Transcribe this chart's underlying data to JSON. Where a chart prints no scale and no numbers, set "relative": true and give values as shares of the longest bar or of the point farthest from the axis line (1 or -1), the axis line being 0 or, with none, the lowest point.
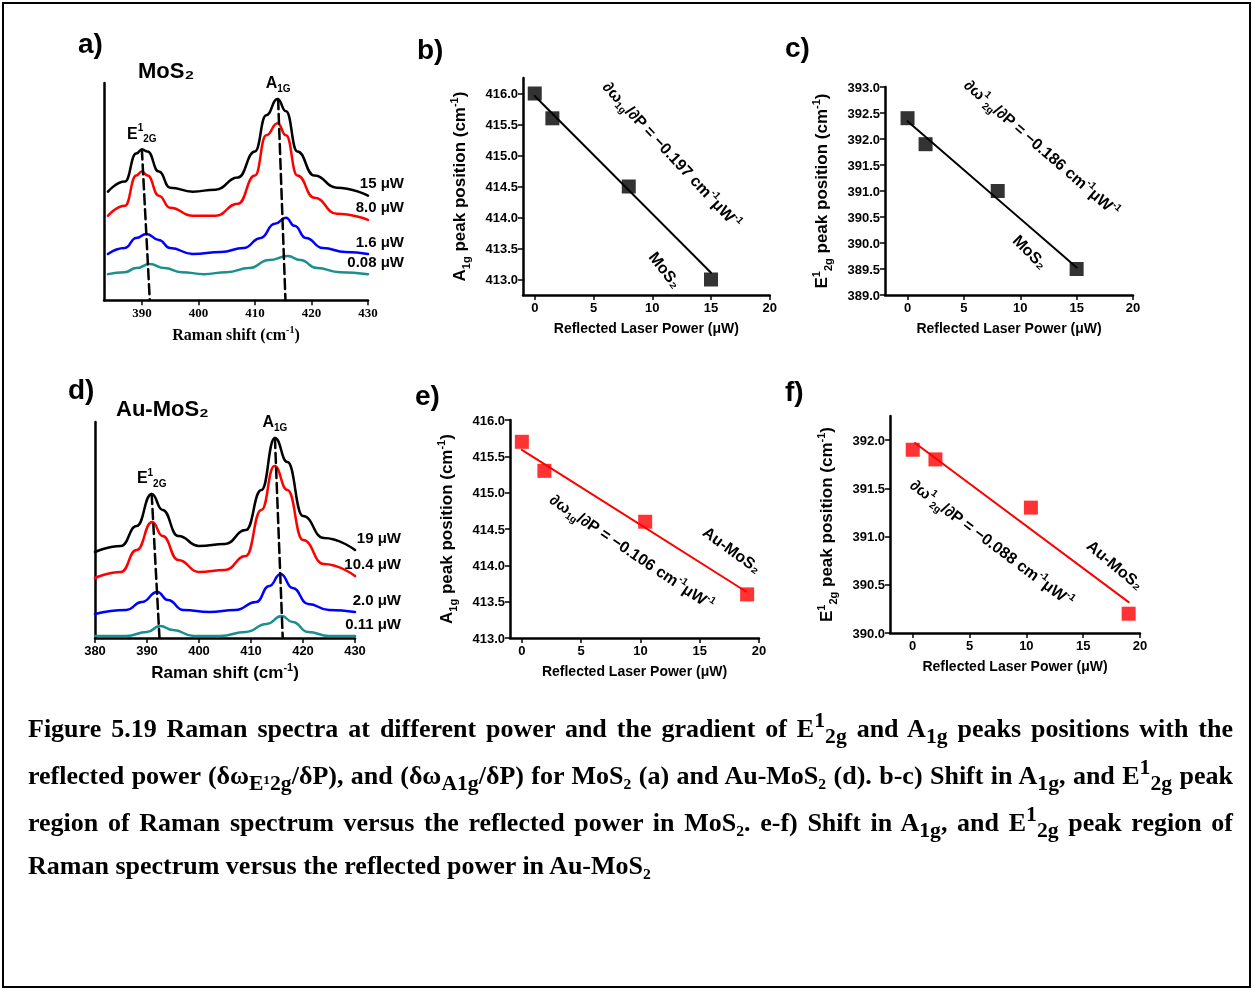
{
  "chart_data": [
    {
      "type": "line",
      "title": "a)",
      "subtitle": "MoS₂",
      "xlabel": "Raman shift (cm$^{-1}$)",
      "relative": true,
      "xlim": [
        383.3,
        430
      ],
      "xticks": [
        390,
        400,
        410,
        420,
        430
      ],
      "marker": "none",
      "annotations": [
        {
          "text": "E$^{1}$$_{2G}$",
          "x": 390,
          "y": 0.75
        },
        {
          "text": "A$_{1G}$",
          "x": 414.1,
          "y": 1.0
        }
      ],
      "series": [
        {
          "name": "15 μW",
          "color": "#000000",
          "x": [
            384,
            387,
            389,
            390,
            391,
            393,
            395,
            399,
            403,
            407,
            410,
            412,
            414,
            415.5,
            417.5,
            420.5,
            424.5,
            430
          ],
          "values": [
            0.54,
            0.59,
            0.73,
            0.75,
            0.74,
            0.64,
            0.56,
            0.54,
            0.55,
            0.61,
            0.74,
            0.92,
            1.0,
            0.94,
            0.74,
            0.62,
            0.56,
            0.52
          ]
        },
        {
          "name": "8.0 μW",
          "color": "#ff0000",
          "x": [
            384,
            387,
            389,
            390,
            391,
            393,
            395,
            399,
            403,
            407,
            410,
            412,
            414,
            415.5,
            417.5,
            420.5,
            424.5,
            430
          ],
          "values": [
            0.42,
            0.47,
            0.62,
            0.64,
            0.62,
            0.52,
            0.46,
            0.42,
            0.42,
            0.48,
            0.62,
            0.82,
            0.88,
            0.82,
            0.62,
            0.51,
            0.43,
            0.4
          ]
        },
        {
          "name": "1.6 μW",
          "color": "#0000ff",
          "x": [
            384,
            387,
            389,
            390.8,
            393,
            395,
            399,
            404,
            408,
            411,
            413.5,
            415.5,
            417,
            419,
            422,
            426,
            430
          ],
          "values": [
            0.23,
            0.26,
            0.31,
            0.33,
            0.3,
            0.26,
            0.23,
            0.24,
            0.26,
            0.31,
            0.38,
            0.41,
            0.37,
            0.31,
            0.26,
            0.24,
            0.23
          ]
        },
        {
          "name": "0.08 μW",
          "color": "#1a8f8f",
          "x": [
            384,
            387,
            389,
            391.4,
            394,
            397,
            401,
            405,
            409,
            412.5,
            415.8,
            418,
            421,
            425,
            430
          ],
          "values": [
            0.13,
            0.14,
            0.16,
            0.18,
            0.16,
            0.14,
            0.13,
            0.14,
            0.16,
            0.2,
            0.22,
            0.2,
            0.16,
            0.14,
            0.13
          ]
        },
        {
          "color": "#000000",
          "line_style": "dashed",
          "x": [
            390,
            391.4
          ],
          "values": [
            0.75,
            0
          ]
        },
        {
          "color": "#000000",
          "line_style": "dashed",
          "x": [
            414.1,
            415.4
          ],
          "values": [
            1.0,
            0
          ]
        }
      ]
    },
    {
      "type": "scatter",
      "title": "b)",
      "xlabel": "Reflected Laser Power (μW)",
      "ylabel": "A$_{1g}$ peak position (cm$^{-1}$)",
      "xlim": [
        -1,
        20
      ],
      "ylim": [
        412.75,
        416.25
      ],
      "xticks": [
        0,
        5,
        10,
        15,
        20
      ],
      "yticks": [
        {
          "value": 413,
          "label": "413.0"
        },
        {
          "value": 413.5,
          "label": "413.5"
        },
        {
          "value": 414,
          "label": "414.0"
        },
        {
          "value": 414.5,
          "label": "414.5"
        },
        {
          "value": 415,
          "label": "415.0"
        },
        {
          "value": 415.5,
          "label": "415.5"
        },
        {
          "value": 416,
          "label": "416.0"
        }
      ],
      "marker": "square",
      "annotations": [
        "∂ω$_{1g}$/∂P = −0.197 cm$^{-1}$μW$^{-1}$",
        "MoS₂"
      ],
      "series": [
        {
          "color": "#000000",
          "x": [
            0,
            1.5,
            8,
            15
          ],
          "values": [
            416.0,
            415.6,
            414.5,
            413.0
          ]
        },
        {
          "type": "line",
          "marker": "none",
          "color": "#000000",
          "x": [
            0,
            15
          ],
          "values": [
            415.96,
            413.11
          ]
        }
      ]
    },
    {
      "type": "scatter",
      "title": "c)",
      "xlabel": "Reflected Laser Power (μW)",
      "ylabel": "E$^{1}$$_{2g}$ peak position (cm$^{-1}$)",
      "xlim": [
        -2,
        20
      ],
      "ylim": [
        389,
        393
      ],
      "xticks": [
        0,
        5,
        10,
        15,
        20
      ],
      "yticks": [
        {
          "value": 389,
          "label": "389.0"
        },
        {
          "value": 389.5,
          "label": "389.5"
        },
        {
          "value": 390,
          "label": "390.0"
        },
        {
          "value": 390.5,
          "label": "390.5"
        },
        {
          "value": 391,
          "label": "391.0"
        },
        {
          "value": 391.5,
          "label": "391.5"
        },
        {
          "value": 392,
          "label": "392.0"
        },
        {
          "value": 392.5,
          "label": "392.5"
        },
        {
          "value": 393,
          "label": "393.0"
        }
      ],
      "marker": "square",
      "annotations": [
        "∂ω$^{1}$$_{2g}$/∂P = −0.186 cm$^{-1}$μW$^{-1}$",
        "MoS₂"
      ],
      "series": [
        {
          "color": "#000000",
          "x": [
            0,
            1.6,
            8,
            15
          ],
          "values": [
            392.4,
            391.9,
            391.0,
            389.5
          ]
        },
        {
          "type": "line",
          "marker": "none",
          "color": "#000000",
          "x": [
            0,
            15
          ],
          "values": [
            392.34,
            389.53
          ]
        }
      ]
    },
    {
      "type": "line",
      "title": "d)",
      "subtitle": "Au-MoS₂",
      "xlabel": "Raman shift (cm$^{-1}$)",
      "relative": true,
      "xlim": [
        380,
        430
      ],
      "xticks": [
        380,
        390,
        400,
        410,
        420,
        430
      ],
      "marker": "none",
      "annotations": [
        {
          "text": "E$^{1}$$_{2G}$",
          "x": 390.9,
          "y": 0.72
        },
        {
          "text": "A$_{1G}$",
          "x": 414.6,
          "y": 1.0
        }
      ],
      "series": [
        {
          "name": "19 μW",
          "color": "#000000",
          "x": [
            380,
            385,
            388,
            390.9,
            393,
            396,
            400,
            405,
            409,
            412,
            414.6,
            417,
            420,
            424,
            430
          ],
          "values": [
            0.43,
            0.46,
            0.56,
            0.72,
            0.64,
            0.51,
            0.46,
            0.47,
            0.54,
            0.74,
            1.0,
            0.88,
            0.61,
            0.5,
            0.44
          ]
        },
        {
          "name": "10.4 μW",
          "color": "#ff0000",
          "x": [
            380,
            385,
            388,
            391,
            393,
            396,
            400,
            405,
            409,
            412,
            414.5,
            417,
            420,
            424,
            430
          ],
          "values": [
            0.3,
            0.33,
            0.44,
            0.58,
            0.51,
            0.39,
            0.33,
            0.34,
            0.41,
            0.64,
            0.86,
            0.74,
            0.49,
            0.37,
            0.31
          ]
        },
        {
          "name": "2.0 μW",
          "color": "#0000ff",
          "x": [
            380,
            386,
            389,
            392,
            394,
            397,
            402,
            407,
            411,
            413.5,
            415.7,
            418,
            421,
            425,
            430
          ],
          "values": [
            0.12,
            0.14,
            0.18,
            0.23,
            0.19,
            0.14,
            0.13,
            0.14,
            0.18,
            0.26,
            0.32,
            0.25,
            0.17,
            0.14,
            0.13
          ]
        },
        {
          "name": "0.11 μW",
          "color": "#1a8f8f",
          "x": [
            380,
            386,
            390,
            392.5,
            395,
            399,
            404,
            409,
            413,
            415.9,
            418,
            421,
            425,
            430
          ],
          "values": [
            0.01,
            0.01,
            0.03,
            0.06,
            0.04,
            0.01,
            0.01,
            0.03,
            0.07,
            0.11,
            0.08,
            0.03,
            0.01,
            0.01
          ]
        },
        {
          "color": "#000000",
          "line_style": "dashed",
          "x": [
            390.9,
            392.4
          ],
          "values": [
            0.72,
            0
          ]
        },
        {
          "color": "#000000",
          "line_style": "dashed",
          "x": [
            414.6,
            416.1
          ],
          "values": [
            1.0,
            0
          ]
        }
      ]
    },
    {
      "type": "scatter",
      "title": "e)",
      "xlabel": "Reflected Laser Power (μW)",
      "ylabel": "A$_{1g}$ peak position (cm$^{-1}$)",
      "xlim": [
        -1,
        20
      ],
      "ylim": [
        413,
        416
      ],
      "xticks": [
        0,
        5,
        10,
        15,
        20
      ],
      "yticks": [
        {
          "value": 413,
          "label": "413.0"
        },
        {
          "value": 413.5,
          "label": "413.5"
        },
        {
          "value": 414,
          "label": "414.0"
        },
        {
          "value": 414.5,
          "label": "414.5"
        },
        {
          "value": 415,
          "label": "415.0"
        },
        {
          "value": 415.5,
          "label": "415.5"
        },
        {
          "value": 416,
          "label": "416.0"
        }
      ],
      "marker": "square",
      "annotations": [
        "∂ω$_{1g}$/∂P = −0.106 cm$^{-1}$μW$^{-1}$",
        "Au-MoS₂"
      ],
      "series": [
        {
          "color": "#ff0000",
          "x": [
            0,
            1.9,
            10.4,
            19
          ],
          "values": [
            415.7,
            415.3,
            414.6,
            413.6
          ]
        },
        {
          "type": "line",
          "marker": "none",
          "color": "#ff0000",
          "x": [
            0,
            18.9
          ],
          "values": [
            415.59,
            413.64
          ]
        }
      ]
    },
    {
      "type": "scatter",
      "title": "f)",
      "xlabel": "Reflected Laser Power (μW)",
      "ylabel": "E$^{1}$$_{2g}$ peak position (cm$^{-1}$)",
      "xlim": [
        -2,
        20
      ],
      "ylim": [
        390,
        392.25
      ],
      "xticks": [
        0,
        5,
        10,
        15,
        20
      ],
      "yticks": [
        {
          "value": 390,
          "label": "390.0"
        },
        {
          "value": 390.5,
          "label": "390.5"
        },
        {
          "value": 391,
          "label": "391.0"
        },
        {
          "value": 391.5,
          "label": "391.5"
        },
        {
          "value": 392,
          "label": "392.0"
        }
      ],
      "marker": "square",
      "annotations": [
        "∂ω$^{1}$$_{2g}$/∂P = −0.088 cm$^{-1}$μW$^{-1}$",
        "Au-MoS₂"
      ],
      "series": [
        {
          "color": "#ff0000",
          "x": [
            0,
            2,
            10.4,
            19
          ],
          "values": [
            391.9,
            391.8,
            391.3,
            390.2
          ]
        },
        {
          "type": "line",
          "marker": "none",
          "color": "#ff0000",
          "x": [
            0.2,
            19
          ],
          "values": [
            391.97,
            390.32
          ]
        }
      ]
    },
    {
      "type": "other",
      "annotations": [
        "Figure 5.19 Raman spectra at different power and the gradient of E$^{1}$$_{2g}$ and A$_{1g}$ peaks positions with the reflected power (δω$_{E¹2g}$/δP), and (δω$_{A1g}$/δP) for MoS₂ (a) and Au-MoS₂ (d).",
        "b-c) Shift in A$_{1g}$, and E$^{1}$$_{2g}$ peak region of Raman spectrum versus the reflected power in MoS₂.",
        "e-f) Shift in A$_{1g}$, and E$^{1}$$_{2g}$ peak region of Raman spectrum versus the reflected power in Au-MoS₂"
      ]
    }
  ]
}
